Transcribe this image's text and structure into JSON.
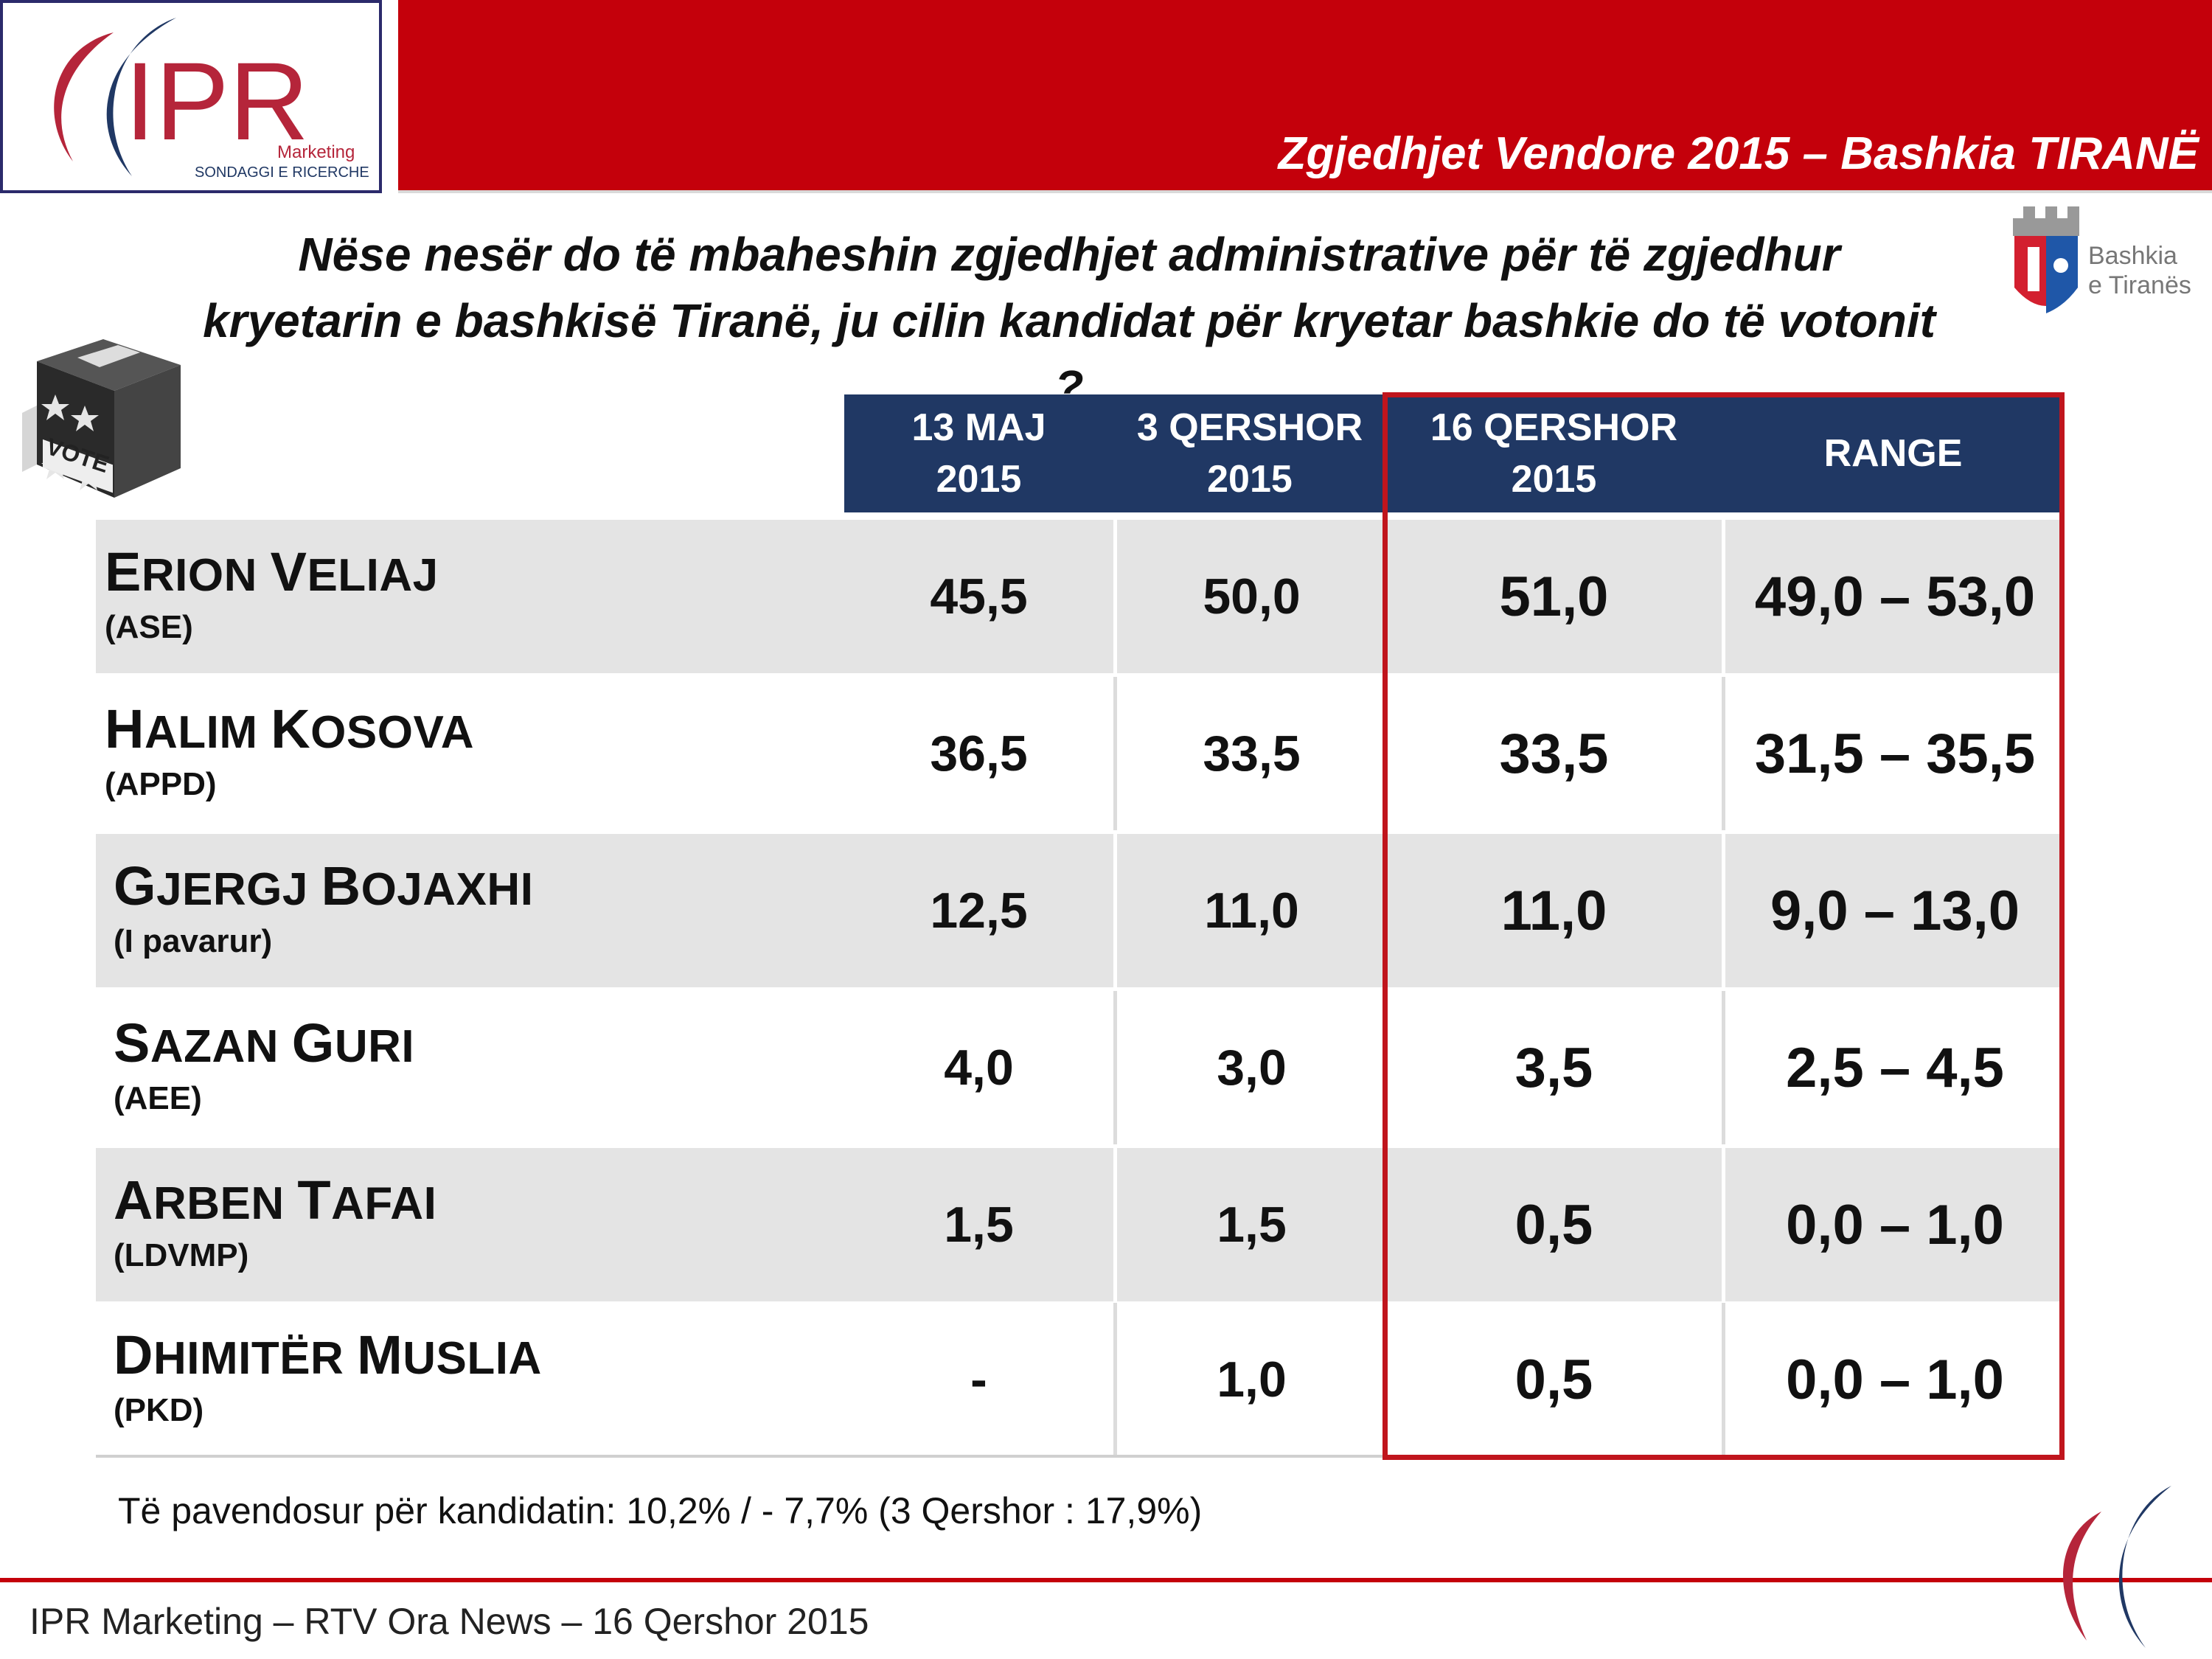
{
  "header": {
    "logo": {
      "brand": "IPR",
      "sub1": "Marketing",
      "sub2": "SONDAGGI E RICERCHE"
    },
    "banner_title": "Zgjedhjet Vendore 2015 – Bashkia TIRANË"
  },
  "question": {
    "line1": "Nëse nesër do të mbaheshin zgjedhjet administrative për të zgjedhur",
    "line2": "kryetarin e bashkisë Tiranë, ju cilin kandidat për kryetar bashkie do të votonit ?"
  },
  "tirana_logo": {
    "line1": "Bashkia",
    "line2": "e Tiranës"
  },
  "ballot_icon": {
    "label": "VOTE"
  },
  "table": {
    "columns": [
      {
        "line1": "13 MAJ",
        "line2": "2015"
      },
      {
        "line1": "3 QERSHOR",
        "line2": "2015"
      },
      {
        "line1": "16 QERSHOR",
        "line2": "2015"
      },
      {
        "line1": "RANGE",
        "line2": ""
      }
    ],
    "rows": [
      {
        "first_initial": "E",
        "first_rest": "RION",
        "last_initial": "V",
        "last_rest": "ELIAJ",
        "party": "(ASE)",
        "v1": "45,5",
        "v2": "50,0",
        "v3": "51,0",
        "range": "49,0 – 53,0"
      },
      {
        "first_initial": "H",
        "first_rest": "ALIM",
        "last_initial": "K",
        "last_rest": "OSOVA",
        "party": "(APPD)",
        "v1": "36,5",
        "v2": "33,5",
        "v3": "33,5",
        "range": "31,5 – 35,5"
      },
      {
        "first_initial": "G",
        "first_rest": "JERGJ",
        "last_initial": "B",
        "last_rest": "OJAXHI",
        "party": "(I pavarur)",
        "v1": "12,5",
        "v2": "11,0",
        "v3": "11,0",
        "range": "9,0 – 13,0"
      },
      {
        "first_initial": "S",
        "first_rest": "AZAN",
        "last_initial": "G",
        "last_rest": "URI",
        "party": "(AEE)",
        "v1": "4,0",
        "v2": "3,0",
        "v3": "3,5",
        "range": "2,5 – 4,5"
      },
      {
        "first_initial": "A",
        "first_rest": "RBEN",
        "last_initial": "T",
        "last_rest": "AFAI",
        "party": "(LDVMP)",
        "v1": "1,5",
        "v2": "1,5",
        "v3": "0,5",
        "range": "0,0 – 1,0"
      },
      {
        "first_initial": "D",
        "first_rest": "HIMITËR",
        "last_initial": "M",
        "last_rest": "USLIA",
        "party": "(PKD)",
        "v1": "-",
        "v2": "1,0",
        "v3": "0,5",
        "range": "0,0 – 1,0"
      }
    ]
  },
  "undecided_note": "Të pavendosur për kandidatin: 10,2% / - 7,7% (3 Qershor : 17,9%)",
  "footer": "IPR Marketing – RTV Ora News – 16 Qershor 2015",
  "colors": {
    "red": "#c4000b",
    "navy": "#203864",
    "frame": "#c0151d",
    "row_grey": "#e4e4e4"
  }
}
